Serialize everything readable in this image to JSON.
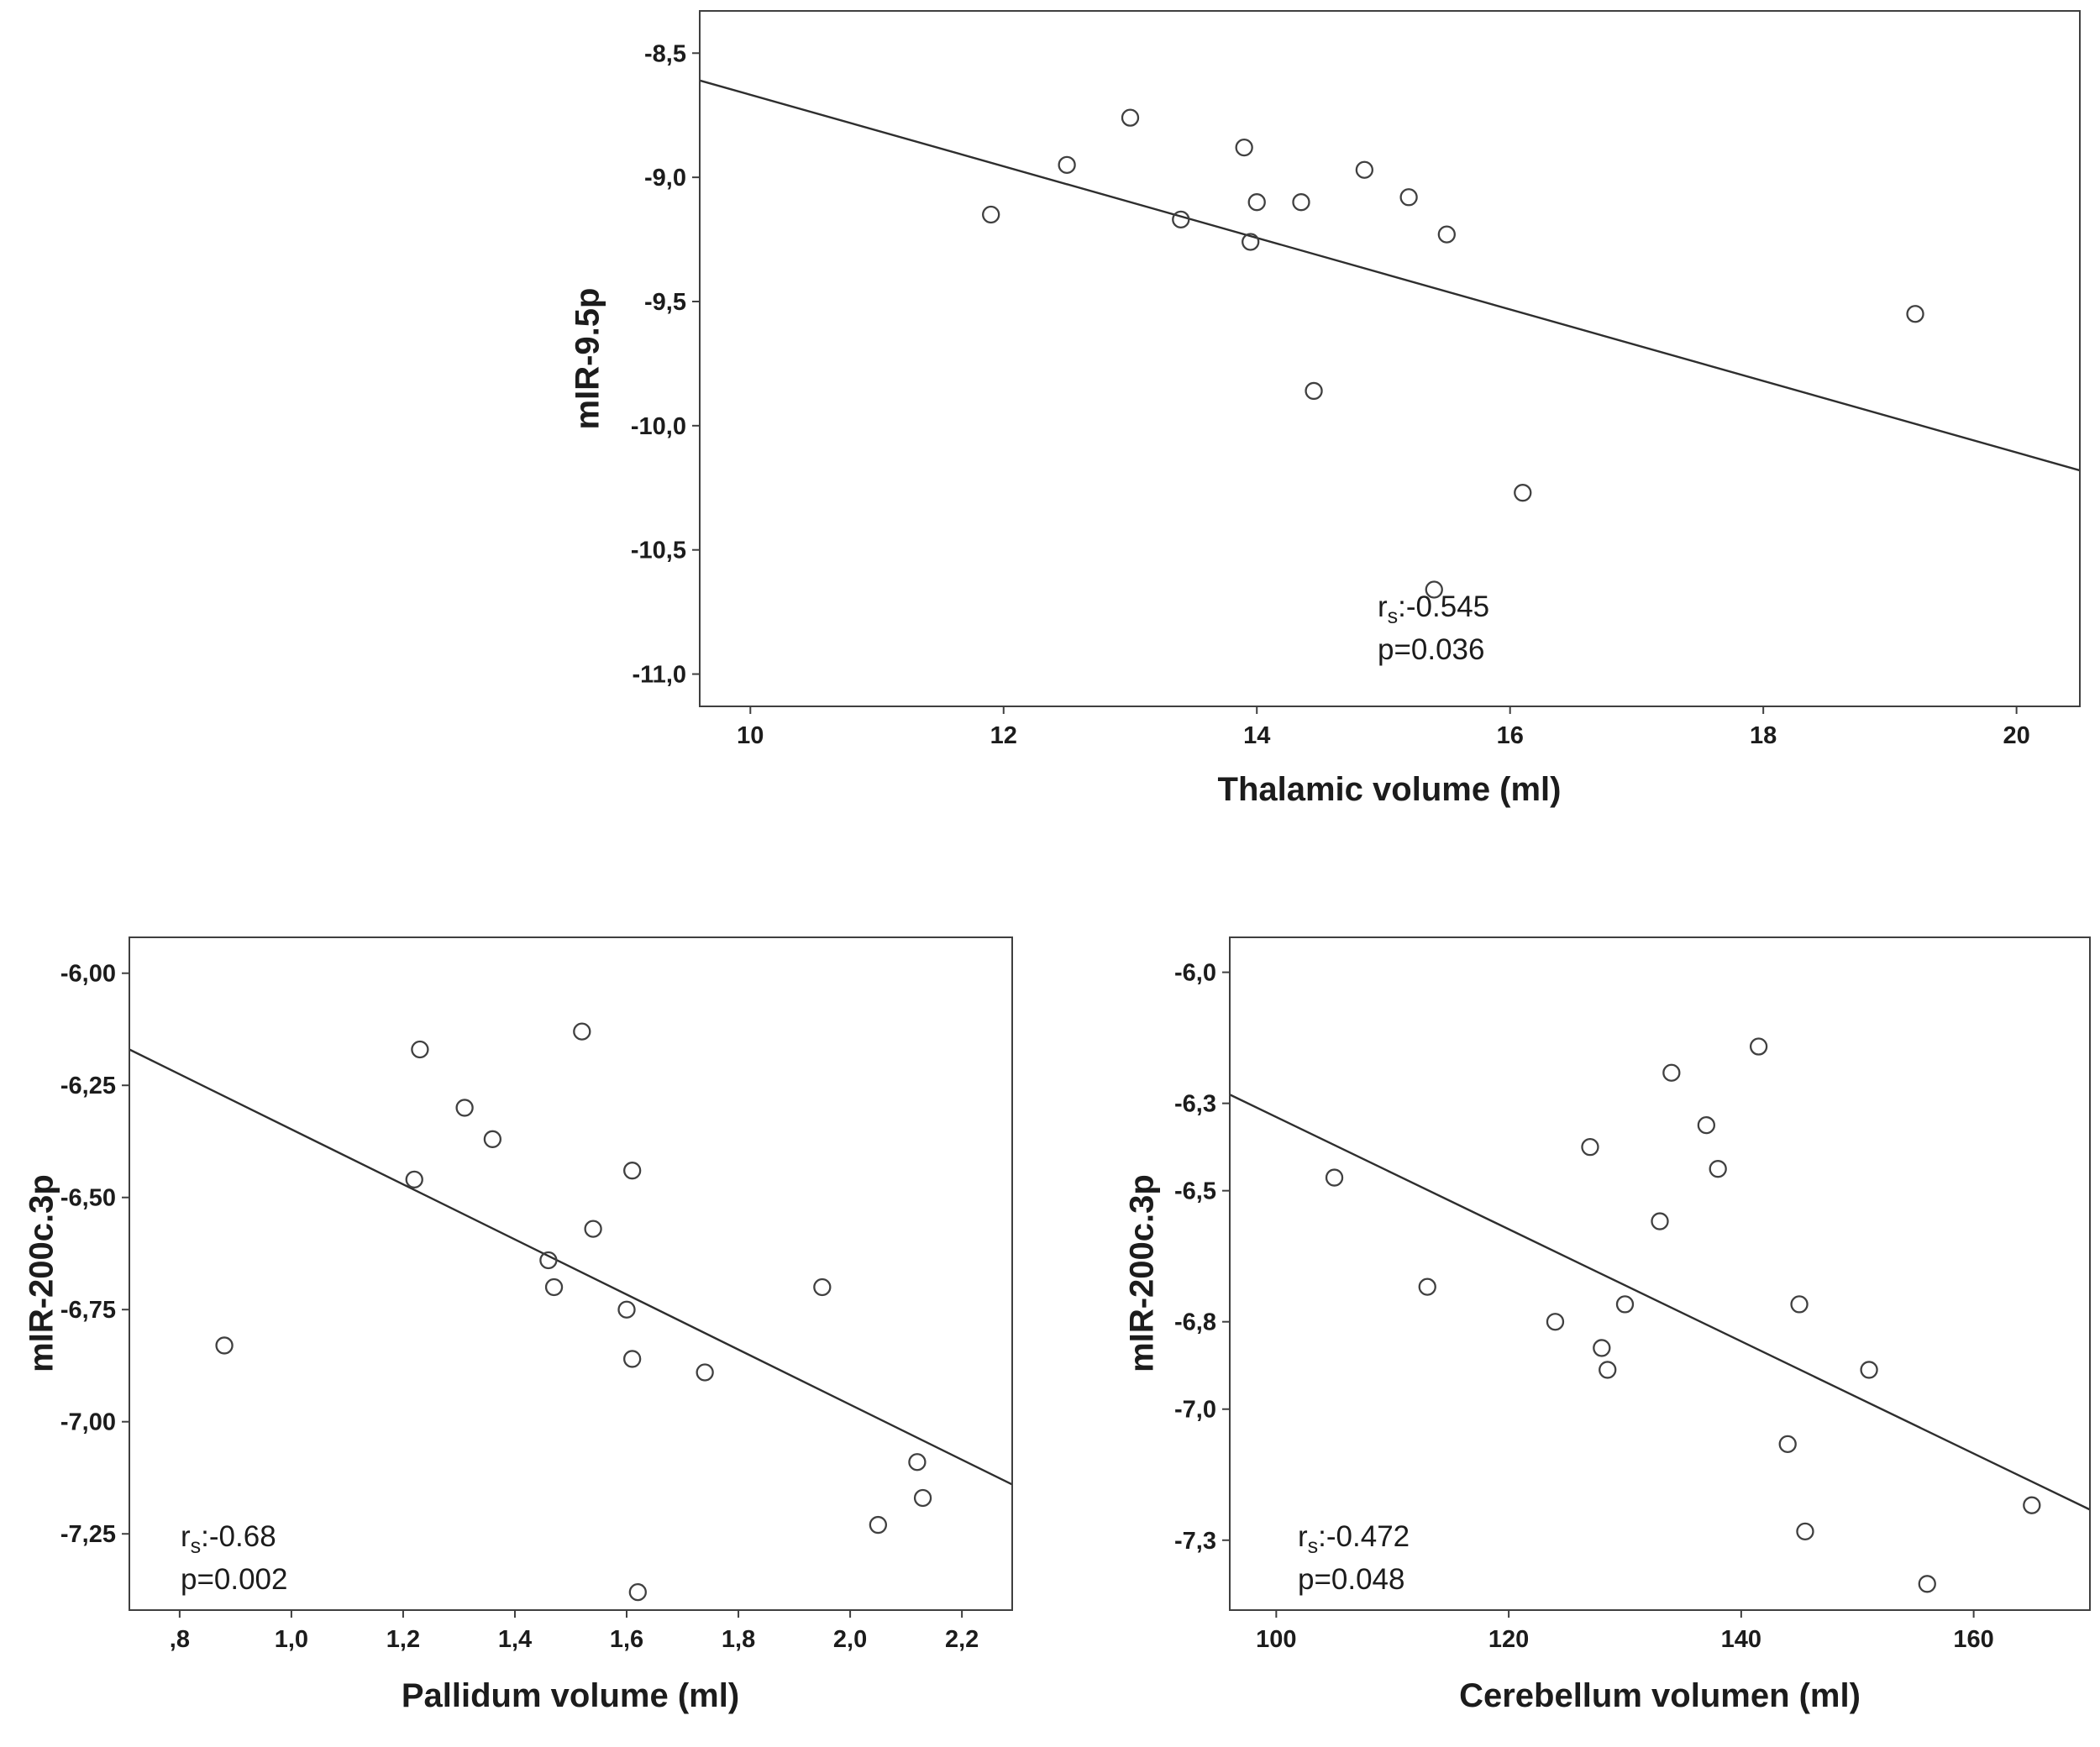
{
  "figure": {
    "background": "#ffffff",
    "axis_color": "#3f3f3f",
    "marker_color": "#404040",
    "line_color": "#2e2e2e",
    "text_color": "#1c1c1c"
  },
  "chart_data": [
    {
      "type": "scatter",
      "title": "",
      "xlabel": "Thalamic volume (ml)",
      "ylabel": "mIR-9.5p",
      "xlim": [
        9.6,
        20.5
      ],
      "ylim": [
        -11.13,
        -8.33
      ],
      "grid": false,
      "x_ticks": [
        10,
        12,
        14,
        16,
        18,
        20
      ],
      "x_tick_labels": [
        "10",
        "12",
        "14",
        "16",
        "18",
        "20"
      ],
      "y_ticks": [
        -8.5,
        -9.0,
        -9.5,
        -10.0,
        -10.5,
        -11.0
      ],
      "y_tick_labels": [
        "-8,5",
        "-9,0",
        "-9,5",
        "-10,0",
        "-10,5",
        "-11,0"
      ],
      "points": [
        [
          11.9,
          -9.15
        ],
        [
          12.5,
          -8.95
        ],
        [
          13.0,
          -8.76
        ],
        [
          13.4,
          -9.17
        ],
        [
          13.9,
          -8.88
        ],
        [
          14.0,
          -9.1
        ],
        [
          13.95,
          -9.26
        ],
        [
          14.35,
          -9.1
        ],
        [
          14.85,
          -8.97
        ],
        [
          15.2,
          -9.08
        ],
        [
          15.5,
          -9.23
        ],
        [
          14.45,
          -9.86
        ],
        [
          16.1,
          -10.27
        ],
        [
          15.4,
          -10.66
        ],
        [
          19.2,
          -9.55
        ]
      ],
      "trendline": {
        "x": [
          9.6,
          20.5
        ],
        "y": [
          -8.61,
          -10.18
        ]
      },
      "stats": {
        "r_base": "r",
        "r_sub": "s",
        "r_value": ":-0.545",
        "p_value": "p=0.036"
      }
    },
    {
      "type": "scatter",
      "title": "",
      "xlabel": "Pallidum volume (ml)",
      "ylabel": "mIR-200c.3p",
      "xlim": [
        0.71,
        2.29
      ],
      "ylim": [
        -7.42,
        -5.92
      ],
      "grid": false,
      "x_ticks": [
        0.8,
        1.0,
        1.2,
        1.4,
        1.6,
        1.8,
        2.0,
        2.2
      ],
      "x_tick_labels": [
        ",8",
        "1,0",
        "1,2",
        "1,4",
        "1,6",
        "1,8",
        "2,0",
        "2,2"
      ],
      "y_ticks": [
        -6.0,
        -6.25,
        -6.5,
        -6.75,
        -7.0,
        -7.25
      ],
      "y_tick_labels": [
        "-6,00",
        "-6,25",
        "-6,50",
        "-6,75",
        "-7,00",
        "-7,25"
      ],
      "points": [
        [
          0.88,
          -6.83
        ],
        [
          1.23,
          -6.17
        ],
        [
          1.22,
          -6.46
        ],
        [
          1.31,
          -6.3
        ],
        [
          1.36,
          -6.37
        ],
        [
          1.52,
          -6.13
        ],
        [
          1.54,
          -6.57
        ],
        [
          1.61,
          -6.44
        ],
        [
          1.46,
          -6.64
        ],
        [
          1.47,
          -6.7
        ],
        [
          1.6,
          -6.75
        ],
        [
          1.61,
          -6.86
        ],
        [
          1.74,
          -6.89
        ],
        [
          1.95,
          -6.7
        ],
        [
          2.05,
          -7.23
        ],
        [
          2.12,
          -7.09
        ],
        [
          2.13,
          -7.17
        ],
        [
          1.62,
          -7.38
        ]
      ],
      "trendline": {
        "x": [
          0.71,
          2.29
        ],
        "y": [
          -6.17,
          -7.14
        ]
      },
      "stats": {
        "r_base": "r",
        "r_sub": "s",
        "r_value": ":-0.68",
        "p_value": "p=0.002"
      }
    },
    {
      "type": "scatter",
      "title": "",
      "xlabel": "Cerebellum volumen (ml)",
      "ylabel": "mIR-200c.3p",
      "xlim": [
        96,
        170
      ],
      "ylim": [
        -7.46,
        -5.92
      ],
      "grid": false,
      "x_ticks": [
        100,
        120,
        140,
        160
      ],
      "x_tick_labels": [
        "100",
        "120",
        "140",
        "160"
      ],
      "y_ticks": [
        -6.0,
        -6.3,
        -6.5,
        -6.8,
        -7.0,
        -7.3
      ],
      "y_tick_labels": [
        "-6,0",
        "-6,3",
        "-6,5",
        "-6,8",
        "-7,0",
        "-7,3"
      ],
      "points": [
        [
          105,
          -6.47
        ],
        [
          113,
          -6.72
        ],
        [
          124,
          -6.8
        ],
        [
          127,
          -6.4
        ],
        [
          128,
          -6.86
        ],
        [
          128.5,
          -6.91
        ],
        [
          130,
          -6.76
        ],
        [
          133,
          -6.57
        ],
        [
          134,
          -6.23
        ],
        [
          137,
          -6.35
        ],
        [
          138,
          -6.45
        ],
        [
          141.5,
          -6.17
        ],
        [
          144,
          -7.08
        ],
        [
          145,
          -6.76
        ],
        [
          145.5,
          -7.28
        ],
        [
          151,
          -6.91
        ],
        [
          156,
          -7.4
        ],
        [
          165,
          -7.22
        ]
      ],
      "trendline": {
        "x": [
          96,
          170
        ],
        "y": [
          -6.28,
          -7.23
        ]
      },
      "stats": {
        "r_base": "r",
        "r_sub": "s",
        "r_value": ":-0.472",
        "p_value": "p=0.048"
      }
    }
  ]
}
